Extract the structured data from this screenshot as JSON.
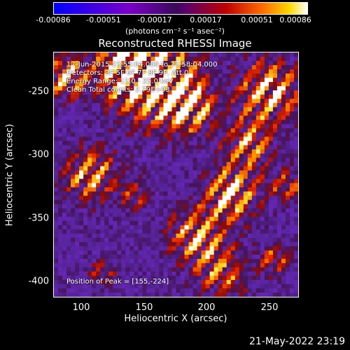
{
  "colorbar": {
    "ticks": [
      "-0.00086",
      "-0.00051",
      "-0.00017",
      "0.00017",
      "0.00051",
      "0.00086"
    ],
    "unit": "(photons cm⁻² s⁻¹ asec⁻²)",
    "min": -0.00086,
    "max": 0.00086
  },
  "title": "Reconstructed RHESSI Image",
  "annotations": {
    "time": "17-Jun-2015 23:55:04.000 to 23:58:04.000",
    "detectors": "Detectors: 3F 5F 6F 7F 8F 9F, Att 0",
    "energy": "Energy Range: 12.0 - 25.0 keV",
    "clean": "Clean     Total counts: 2.79E+03",
    "peak": "Position of Peak = [155,-224]"
  },
  "axes": {
    "xlabel": "Heliocentric X (arcsec)",
    "ylabel": "Heliocentric Y (arcsec)",
    "xticks": [
      "100",
      "150",
      "200",
      "250"
    ],
    "yticks": [
      "-250",
      "-300",
      "-350",
      "-400"
    ],
    "xlim": [
      78,
      270
    ],
    "ylim": [
      -408,
      -222
    ]
  },
  "footer": {
    "timestamp": "21-May-2022 23:19"
  },
  "colors": {
    "background": "#000000",
    "foreground": "#ffffff"
  }
}
